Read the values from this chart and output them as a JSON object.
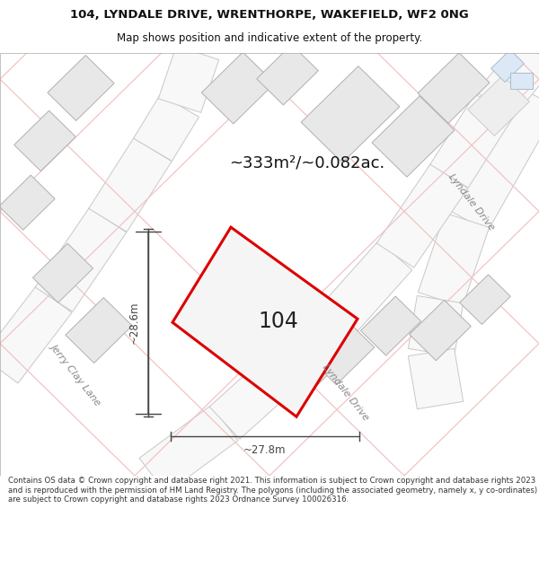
{
  "title_line1": "104, LYNDALE DRIVE, WRENTHORPE, WAKEFIELD, WF2 0NG",
  "title_line2": "Map shows position and indicative extent of the property.",
  "area_label": "~333m²/~0.082ac.",
  "plot_number": "104",
  "dim_height": "~28.6m",
  "dim_width": "~27.8m",
  "footer_text": "Contains OS data © Crown copyright and database right 2021. This information is subject to Crown copyright and database rights 2023 and is reproduced with the permission of HM Land Registry. The polygons (including the associated geometry, namely x, y co-ordinates) are subject to Crown copyright and database rights 2023 Ordnance Survey 100026316.",
  "bg_color": "#ffffff",
  "map_bg": "#ffffff",
  "road_pink": "#f2c4c4",
  "road_gray": "#c8c8c8",
  "building_fill": "#e8e8e8",
  "building_edge": "#b0b0b0",
  "plot_fill": "#f0f0f0",
  "plot_stroke": "#dd0000",
  "road_label_color": "#888888",
  "dim_color": "#444444",
  "title_color": "#111111"
}
